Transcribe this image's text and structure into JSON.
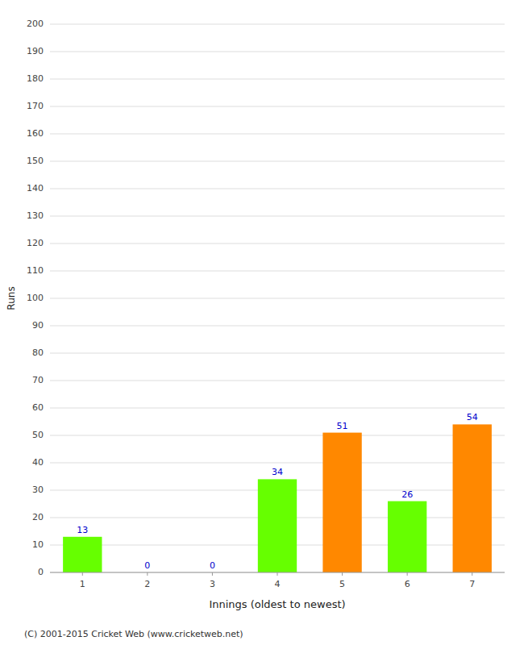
{
  "chart_data": {
    "type": "bar",
    "categories": [
      "1",
      "2",
      "3",
      "4",
      "5",
      "6",
      "7"
    ],
    "values": [
      13,
      0,
      0,
      34,
      51,
      26,
      54
    ],
    "colors": [
      "#66ff00",
      "#66ff00",
      "#66ff00",
      "#66ff00",
      "#ff8800",
      "#66ff00",
      "#ff8800"
    ],
    "xlabel": "Innings (oldest to newest)",
    "ylabel": "Runs",
    "ylim": [
      0,
      200
    ],
    "yticks": [
      0,
      10,
      20,
      30,
      40,
      50,
      60,
      70,
      80,
      90,
      100,
      110,
      120,
      130,
      140,
      150,
      160,
      170,
      180,
      190,
      200
    ],
    "grid": true,
    "data_labels": true,
    "annotations": [
      "(C) 2001-2015 Cricket Web (www.cricketweb.net)"
    ]
  }
}
